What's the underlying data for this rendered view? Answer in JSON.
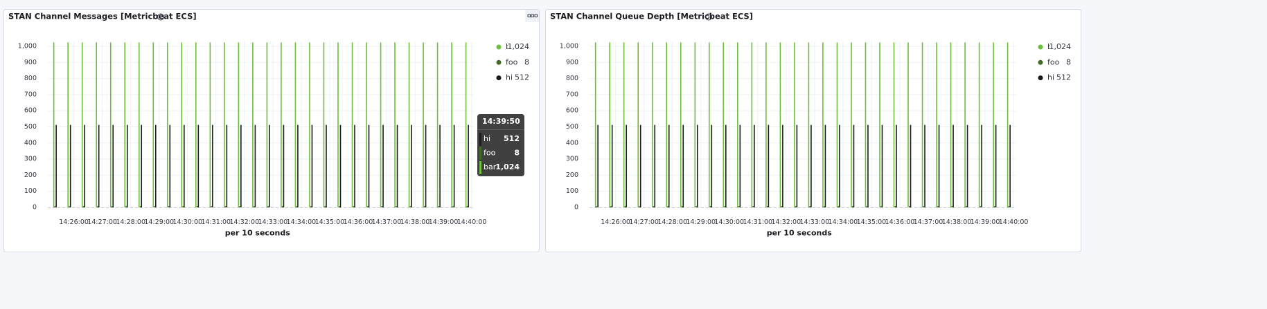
{
  "chart_data": [
    {
      "type": "bar",
      "title": "STAN Channel Messages [Metricbeat ECS]",
      "x_label": "per 10 seconds",
      "x": [
        "14:25:20",
        "14:25:50",
        "14:26:20",
        "14:26:50",
        "14:27:20",
        "14:27:50",
        "14:28:20",
        "14:28:50",
        "14:29:20",
        "14:29:50",
        "14:30:20",
        "14:30:50",
        "14:31:20",
        "14:31:50",
        "14:32:20",
        "14:32:50",
        "14:33:20",
        "14:33:50",
        "14:34:20",
        "14:34:50",
        "14:35:20",
        "14:35:50",
        "14:36:20",
        "14:36:50",
        "14:37:20",
        "14:37:50",
        "14:38:20",
        "14:38:50",
        "14:39:20",
        "14:39:50"
      ],
      "xlim": [
        "14:25:05",
        "14:40:05"
      ],
      "xticks": [
        "14:26:00",
        "14:27:00",
        "14:28:00",
        "14:29:00",
        "14:30:00",
        "14:31:00",
        "14:32:00",
        "14:33:00",
        "14:34:00",
        "14:35:00",
        "14:36:00",
        "14:37:00",
        "14:38:00",
        "14:39:00",
        "14:40:00"
      ],
      "ylim": [
        0,
        1030
      ],
      "yticks": [
        0,
        100,
        200,
        300,
        400,
        500,
        600,
        700,
        800,
        900,
        {
          "value": 1000,
          "label": "1,000"
        }
      ],
      "grid": true,
      "series": [
        {
          "name": "bar",
          "color": "#6dbf3a",
          "legend_value": "1,024",
          "values": [
            1024,
            1024,
            1024,
            1024,
            1024,
            1024,
            1024,
            1024,
            1024,
            1024,
            1024,
            1024,
            1024,
            1024,
            1024,
            1024,
            1024,
            1024,
            1024,
            1024,
            1024,
            1024,
            1024,
            1024,
            1024,
            1024,
            1024,
            1024,
            1024,
            1024
          ]
        },
        {
          "name": "foo",
          "color": "#3f6b22",
          "legend_value": "8",
          "values": [
            8,
            8,
            8,
            8,
            8,
            8,
            8,
            8,
            8,
            8,
            8,
            8,
            8,
            8,
            8,
            8,
            8,
            8,
            8,
            8,
            8,
            8,
            8,
            8,
            8,
            8,
            8,
            8,
            8,
            8
          ]
        },
        {
          "name": "hi",
          "color": "#1c1c1c",
          "legend_value": "512",
          "values": [
            512,
            512,
            512,
            512,
            512,
            512,
            512,
            512,
            512,
            512,
            512,
            512,
            512,
            512,
            512,
            512,
            512,
            512,
            512,
            512,
            512,
            512,
            512,
            512,
            512,
            512,
            512,
            512,
            512,
            512
          ]
        }
      ]
    },
    {
      "type": "bar",
      "title": "STAN Channel Queue Depth [Metricbeat ECS]",
      "x_label": "per 10 seconds",
      "x": [
        "14:25:20",
        "14:25:50",
        "14:26:20",
        "14:26:50",
        "14:27:20",
        "14:27:50",
        "14:28:20",
        "14:28:50",
        "14:29:20",
        "14:29:50",
        "14:30:20",
        "14:30:50",
        "14:31:20",
        "14:31:50",
        "14:32:20",
        "14:32:50",
        "14:33:20",
        "14:33:50",
        "14:34:20",
        "14:34:50",
        "14:35:20",
        "14:35:50",
        "14:36:20",
        "14:36:50",
        "14:37:20",
        "14:37:50",
        "14:38:20",
        "14:38:50",
        "14:39:20",
        "14:39:50"
      ],
      "xlim": [
        "14:25:05",
        "14:40:05"
      ],
      "xticks": [
        "14:26:00",
        "14:27:00",
        "14:28:00",
        "14:29:00",
        "14:30:00",
        "14:31:00",
        "14:32:00",
        "14:33:00",
        "14:34:00",
        "14:35:00",
        "14:36:00",
        "14:37:00",
        "14:38:00",
        "14:39:00",
        "14:40:00"
      ],
      "ylim": [
        0,
        1030
      ],
      "yticks": [
        0,
        100,
        200,
        300,
        400,
        500,
        600,
        700,
        800,
        900,
        {
          "value": 1000,
          "label": "1,000"
        }
      ],
      "grid": true,
      "series": [
        {
          "name": "bar",
          "color": "#6dbf3a",
          "legend_value": "1,024",
          "values": [
            1024,
            1024,
            1024,
            1024,
            1024,
            1024,
            1024,
            1024,
            1024,
            1024,
            1024,
            1024,
            1024,
            1024,
            1024,
            1024,
            1024,
            1024,
            1024,
            1024,
            1024,
            1024,
            1024,
            1024,
            1024,
            1024,
            1024,
            1024,
            1024,
            1024
          ]
        },
        {
          "name": "foo",
          "color": "#3f6b22",
          "legend_value": "8",
          "values": [
            8,
            8,
            8,
            8,
            8,
            8,
            8,
            8,
            8,
            8,
            8,
            8,
            8,
            8,
            8,
            8,
            8,
            8,
            8,
            8,
            8,
            8,
            8,
            8,
            8,
            8,
            8,
            8,
            8,
            8
          ]
        },
        {
          "name": "hi",
          "color": "#1c1c1c",
          "legend_value": "512",
          "values": [
            512,
            512,
            512,
            512,
            512,
            512,
            512,
            512,
            512,
            512,
            512,
            512,
            512,
            512,
            512,
            512,
            512,
            512,
            512,
            512,
            512,
            512,
            512,
            512,
            512,
            512,
            512,
            512,
            512,
            512
          ]
        }
      ]
    }
  ]
}
